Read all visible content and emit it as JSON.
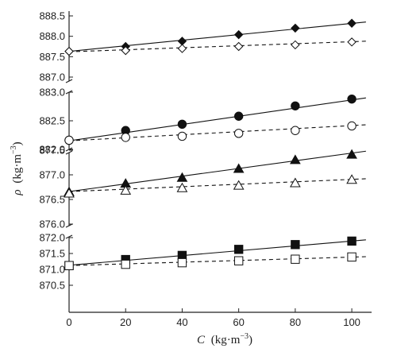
{
  "chart_data": {
    "type": "scatter",
    "xlabel_symbol": "C",
    "xlabel_unit": "(kg·m",
    "xlabel_exp": "−3",
    "ylabel_symbol": "ρ",
    "ylabel_unit": "(kg·m",
    "ylabel_exp": "−3",
    "xlim": [
      0,
      107
    ],
    "x_ticks": [
      0,
      20,
      40,
      60,
      80,
      100
    ],
    "grid": false,
    "legend": "none",
    "panels": [
      {
        "ylim": [
          886.8,
          888.5
        ],
        "y_ticks": [
          887.0,
          887.5,
          888.0,
          888.5
        ],
        "series": [
          {
            "marker": "diamond",
            "filled": true,
            "line": "solid",
            "x": [
              0,
              20,
              40,
              60,
              80,
              100
            ],
            "y": [
              887.63,
              887.75,
              887.88,
              888.04,
              888.2,
              888.32
            ],
            "fit": [
              887.63,
              888.35
            ]
          },
          {
            "marker": "diamond",
            "filled": false,
            "line": "dashed",
            "x": [
              0,
              20,
              40,
              60,
              80,
              100
            ],
            "y": [
              887.63,
              887.65,
              887.7,
              887.75,
              887.79,
              887.86
            ],
            "fit": [
              887.62,
              887.88
            ]
          }
        ]
      },
      {
        "ylim": [
          881.8,
          883.1
        ],
        "y_ticks": [
          882.0,
          882.5,
          883.0
        ],
        "series": [
          {
            "marker": "circle",
            "filled": true,
            "line": "solid",
            "x": [
              0,
              20,
              40,
              60,
              80,
              100
            ],
            "y": [
              882.16,
              882.33,
              882.44,
              882.58,
              882.76,
              882.88
            ],
            "fit": [
              882.15,
              882.9
            ]
          },
          {
            "marker": "circle",
            "filled": false,
            "line": "dashed",
            "x": [
              0,
              20,
              40,
              60,
              80,
              100
            ],
            "y": [
              882.16,
              882.21,
              882.23,
              882.28,
              882.33,
              882.41
            ],
            "fit": [
              882.15,
              882.43
            ]
          }
        ]
      },
      {
        "ylim": [
          875.8,
          877.8
        ],
        "y_ticks": [
          876.0,
          876.5,
          877.0,
          877.5
        ],
        "series": [
          {
            "marker": "triangle",
            "filled": true,
            "line": "solid",
            "x": [
              0,
              20,
              40,
              60,
              80,
              100
            ],
            "y": [
              876.65,
              876.82,
              876.94,
              877.12,
              877.3,
              877.41
            ],
            "fit": [
              876.66,
              877.48
            ]
          },
          {
            "marker": "triangle",
            "filled": false,
            "line": "dashed",
            "x": [
              0,
              20,
              40,
              60,
              80,
              100
            ],
            "y": [
              876.62,
              876.68,
              876.73,
              876.78,
              876.83,
              876.9
            ],
            "fit": [
              876.66,
              876.92
            ]
          }
        ]
      },
      {
        "ylim": [
          870.5,
          872.25
        ],
        "y_ticks": [
          870.5,
          871.0,
          871.5,
          872.0
        ],
        "series": [
          {
            "marker": "square",
            "filled": true,
            "line": "solid",
            "x": [
              0,
              20,
              40,
              60,
              80,
              100
            ],
            "y": [
              871.12,
              871.31,
              871.44,
              871.63,
              871.78,
              871.89
            ],
            "fit": [
              871.13,
              871.93
            ]
          },
          {
            "marker": "square",
            "filled": false,
            "line": "dashed",
            "x": [
              0,
              20,
              40,
              60,
              80,
              100
            ],
            "y": [
              871.12,
              871.16,
              871.21,
              871.27,
              871.32,
              871.39
            ],
            "fit": [
              871.12,
              871.4
            ]
          }
        ]
      }
    ]
  }
}
